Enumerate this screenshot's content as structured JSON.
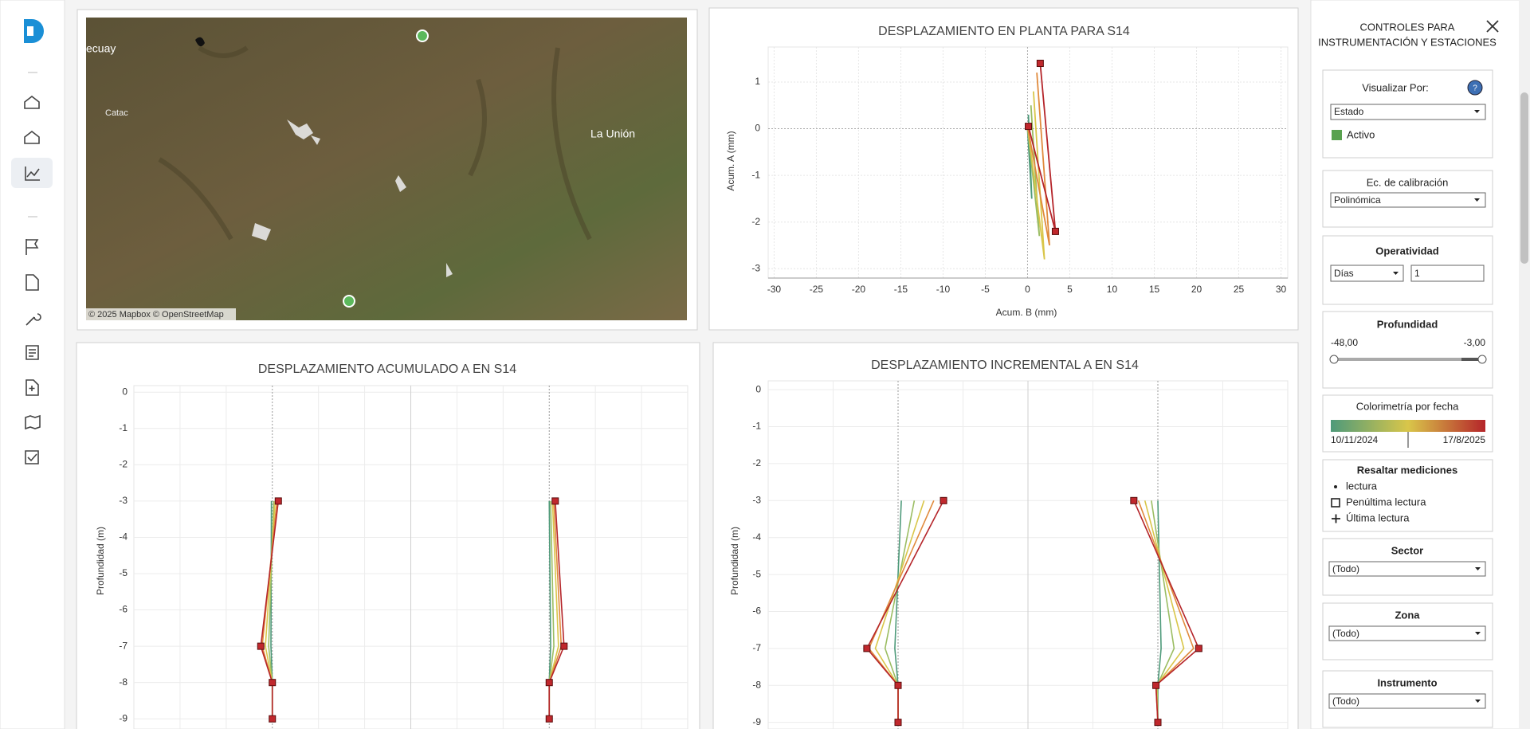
{
  "map": {
    "places": [
      "ecuay",
      "Catac",
      "La Unión"
    ],
    "attribution": "© 2025 Mapbox © OpenStreetMap"
  },
  "chart_data": [
    {
      "type": "line",
      "title": "DESPLAZAMIENTO EN PLANTA PARA S14",
      "x_label": "Acum. B (mm)",
      "y_label": "Acum. A (mm)",
      "xlim": [
        -30.7,
        30.8
      ],
      "xticks": [
        -30,
        -25,
        -20,
        -15,
        -10,
        -5,
        0,
        5,
        10,
        15,
        20,
        25,
        30
      ],
      "ylim": [
        -3.2,
        1.75
      ],
      "yticks": [
        1,
        0,
        -1,
        -2,
        -3
      ],
      "grid": true,
      "series": [
        {
          "color": "#4e9a7a",
          "x": [
            0.1,
            0.5,
            0,
            0
          ],
          "y": [
            0.3,
            -1.5,
            0,
            0
          ]
        },
        {
          "color": "#9bbd63",
          "x": [
            0.4,
            1.4,
            0.02,
            0
          ],
          "y": [
            0.5,
            -2.3,
            0,
            0
          ]
        },
        {
          "color": "#d9c64a",
          "x": [
            0.7,
            2.0,
            0.05,
            0
          ],
          "y": [
            0.8,
            -2.8,
            0,
            0
          ]
        },
        {
          "color": "#e08a3c",
          "x": [
            1.1,
            2.6,
            0.05,
            0
          ],
          "y": [
            1.2,
            -2.5,
            0,
            0
          ]
        },
        {
          "color": "#b5252a",
          "x": [
            1.5,
            3.3,
            0.1,
            0
          ],
          "y": [
            1.4,
            -2.2,
            0.05,
            0
          ]
        }
      ]
    },
    {
      "type": "profile",
      "title": "DESPLAZAMIENTO ACUMULADO A EN S14",
      "y_label": "Profundidad (m)",
      "ylim": [
        -9.28,
        0.18
      ],
      "yticks": [
        0,
        -1,
        -2,
        -3,
        -4,
        -5,
        -6,
        -7,
        -8,
        -9
      ],
      "depths": [
        -3,
        -7,
        -8,
        -9
      ],
      "panels": [
        {
          "xlim": [
            -3,
            3
          ],
          "xgrid": [
            -2,
            -1,
            0,
            1,
            2
          ],
          "series": [
            {
              "color": "#4e9a7a",
              "values": [
                -0.02,
                -0.03,
                0,
                0
              ]
            },
            {
              "color": "#9bbd63",
              "values": [
                0.03,
                -0.08,
                0,
                0
              ]
            },
            {
              "color": "#d9c64a",
              "values": [
                0.06,
                -0.15,
                0,
                0
              ]
            },
            {
              "color": "#e08a3c",
              "values": [
                0.1,
                -0.22,
                0,
                0
              ]
            },
            {
              "color": "#b5252a",
              "values": [
                0.13,
                -0.25,
                0,
                0
              ]
            }
          ]
        },
        {
          "xlim": [
            -3,
            3
          ],
          "xgrid": [
            -2,
            -1,
            0,
            1,
            2
          ],
          "series": [
            {
              "color": "#4e9a7a",
              "values": [
                0,
                0.03,
                0,
                0
              ]
            },
            {
              "color": "#9bbd63",
              "values": [
                0.03,
                0.1,
                0,
                0
              ]
            },
            {
              "color": "#d9c64a",
              "values": [
                0.07,
                0.2,
                0,
                0
              ]
            },
            {
              "color": "#e08a3c",
              "values": [
                0.1,
                0.26,
                0,
                0
              ]
            },
            {
              "color": "#b5252a",
              "values": [
                0.13,
                0.32,
                0,
                0
              ]
            }
          ]
        }
      ]
    },
    {
      "type": "profile",
      "title": "DESPLAZAMIENTO INCREMENTAL A EN S14",
      "y_label": "Profundidad (m)",
      "ylim": [
        -9.18,
        0.24
      ],
      "yticks": [
        0,
        -1,
        -2,
        -3,
        -4,
        -5,
        -6,
        -7,
        -8,
        -9
      ],
      "depths": [
        -3,
        -7,
        -8,
        -9
      ],
      "panels": [
        {
          "xlim": [
            -2,
            2
          ],
          "xgrid": [
            -1,
            0,
            1
          ],
          "series": [
            {
              "color": "#4e9a7a",
              "values": [
                0.05,
                -0.05,
                0,
                0
              ]
            },
            {
              "color": "#9bbd63",
              "values": [
                0.25,
                -0.2,
                0,
                0
              ]
            },
            {
              "color": "#d9c64a",
              "values": [
                0.4,
                -0.35,
                0,
                0
              ]
            },
            {
              "color": "#e08a3c",
              "values": [
                0.55,
                -0.45,
                0,
                0
              ]
            },
            {
              "color": "#b5252a",
              "values": [
                0.7,
                -0.48,
                0,
                0
              ]
            }
          ]
        },
        {
          "xlim": [
            -2,
            2
          ],
          "xgrid": [
            -1,
            0,
            1
          ],
          "series": [
            {
              "color": "#4e9a7a",
              "values": [
                0,
                0.05,
                0,
                0
              ]
            },
            {
              "color": "#9bbd63",
              "values": [
                -0.1,
                0.25,
                -0.01,
                0
              ]
            },
            {
              "color": "#d9c64a",
              "values": [
                -0.2,
                0.4,
                -0.02,
                0
              ]
            },
            {
              "color": "#e08a3c",
              "values": [
                -0.3,
                0.55,
                -0.03,
                0
              ]
            },
            {
              "color": "#b5252a",
              "values": [
                -0.37,
                0.63,
                -0.03,
                0
              ]
            }
          ]
        }
      ]
    }
  ],
  "controls": {
    "title": [
      "CONTROLES PARA",
      "INSTRUMENTACIÓN Y ESTACIONES"
    ],
    "visualizar": {
      "label": "Visualizar Por:",
      "value": "Estado",
      "legend": "Activo",
      "legend_color": "#59a14f"
    },
    "calibracion": {
      "label": "Ec. de calibración",
      "value": "Polinómica"
    },
    "operatividad": {
      "label": "Operatividad",
      "unit": "Días",
      "value": "1"
    },
    "profundidad": {
      "label": "Profundidad",
      "min": "-48,00",
      "max": "-3,00"
    },
    "colorimetria": {
      "label": "Colorimetría por fecha",
      "colors": [
        "#4e9a7a",
        "#d9c64a",
        "#b5252a"
      ],
      "start": "10/11/2024",
      "end": "17/8/2025"
    },
    "resaltar": {
      "label": "Resaltar mediciones",
      "items": [
        "lectura",
        "Penúltima lectura",
        "Última lectura"
      ]
    },
    "filters": [
      {
        "label": "Sector",
        "value": "(Todo)"
      },
      {
        "label": "Zona",
        "value": "(Todo)"
      },
      {
        "label": "Instrumento",
        "value": "(Todo)"
      }
    ]
  }
}
